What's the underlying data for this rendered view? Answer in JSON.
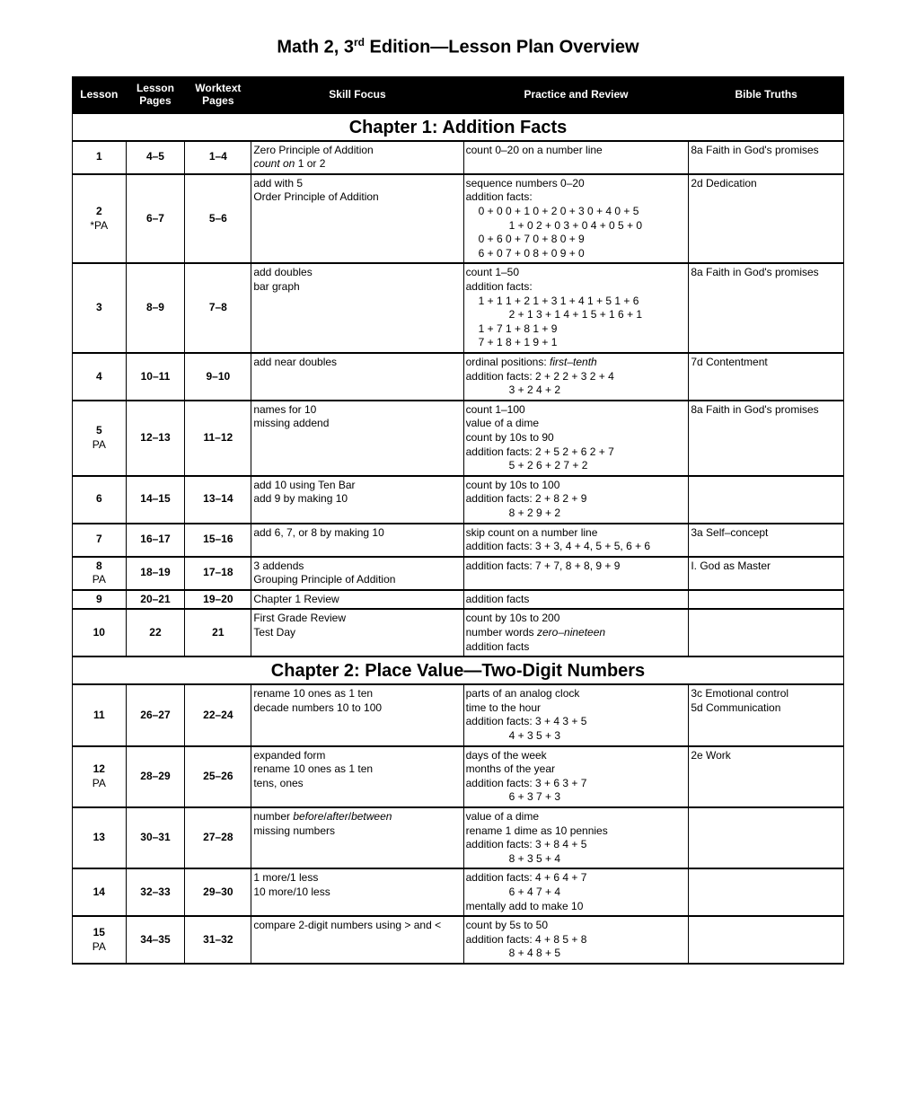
{
  "title_html": "Math 2, 3<sup>rd</sup> Edition—Lesson Plan Overview",
  "headers": [
    "Lesson",
    "Lesson Pages",
    "Worktext Pages",
    "Skill Focus",
    "Practice and Review",
    "Bible Truths"
  ],
  "sections": [
    {
      "chapter": "Chapter 1: Addition Facts",
      "rows": [
        {
          "lesson": "1",
          "sub": "",
          "lpages": "4–5",
          "wpages": "1–4",
          "skill": [
            {
              "t": "Zero Principle of Addition"
            },
            {
              "t": "count on 1 or 2",
              "it": true,
              "itPart": "count on",
              "rest": " 1 or 2"
            }
          ],
          "practice": [
            {
              "t": "count 0–20 on a number line"
            }
          ],
          "bible": [
            {
              "t": "8a Faith in God's promises"
            }
          ]
        },
        {
          "lesson": "2",
          "sub": "*PA",
          "lpages": "6–7",
          "wpages": "5–6",
          "skill": [
            {
              "t": "add with 5"
            },
            {
              "t": "Order Principle of Addition"
            }
          ],
          "practice": [
            {
              "t": "sequence numbers 0–20"
            },
            {
              "t": "addition facts:"
            },
            {
              "t": "0 + 0  0 + 1  0 + 2  0 + 3  0 + 4  0 + 5",
              "indent": 1
            },
            {
              "t": "1 + 0  2 + 0  3 + 0  4 + 0  5 + 0",
              "indent": 2
            },
            {
              "t": "0 + 6  0 + 7  0 + 8  0 + 9",
              "indent": 1
            },
            {
              "t": "6 + 0  7 + 0  8 + 0  9 + 0",
              "indent": 1
            }
          ],
          "bible": [
            {
              "t": "2d Dedication"
            }
          ]
        },
        {
          "lesson": "3",
          "sub": "",
          "lpages": "8–9",
          "wpages": "7–8",
          "skill": [
            {
              "t": "add doubles"
            },
            {
              "t": "bar graph"
            }
          ],
          "practice": [
            {
              "t": "count 1–50"
            },
            {
              "t": "addition facts:"
            },
            {
              "t": "1 + 1  1 + 2  1 + 3  1 + 4  1 + 5  1 + 6",
              "indent": 1
            },
            {
              "t": "2 + 1  3 + 1  4 + 1  5 + 1  6 + 1",
              "indent": 2
            },
            {
              "t": "1 + 7  1 + 8  1 + 9",
              "indent": 1
            },
            {
              "t": "7 + 1  8 + 1  9 + 1",
              "indent": 1
            }
          ],
          "bible": [
            {
              "t": "8a Faith in God's promises"
            }
          ]
        },
        {
          "lesson": "4",
          "sub": "",
          "lpages": "10–11",
          "wpages": "9–10",
          "skill": [
            {
              "t": "add near doubles"
            }
          ],
          "practice": [
            {
              "html": "ordinal positions: <span class='it'>first–tenth</span>"
            },
            {
              "t": "addition facts: 2 + 2   2 + 3   2 + 4"
            },
            {
              "t": "3 + 2   4 + 2",
              "indent": 2
            }
          ],
          "bible": [
            {
              "t": "7d Contentment"
            }
          ]
        },
        {
          "lesson": "5",
          "sub": "PA",
          "lpages": "12–13",
          "wpages": "11–12",
          "skill": [
            {
              "t": "names for 10"
            },
            {
              "t": "missing addend"
            }
          ],
          "practice": [
            {
              "t": "count 1–100"
            },
            {
              "t": "value of a dime"
            },
            {
              "t": "count by 10s to 90"
            },
            {
              "t": "addition facts: 2 + 5   2 + 6   2 + 7"
            },
            {
              "t": "5 + 2   6 + 2   7 + 2",
              "indent": 2
            }
          ],
          "bible": [
            {
              "t": "8a Faith in God's promises"
            }
          ]
        },
        {
          "lesson": "6",
          "sub": "",
          "lpages": "14–15",
          "wpages": "13–14",
          "skill": [
            {
              "t": "add 10 using Ten Bar"
            },
            {
              "t": "add 9 by making 10"
            }
          ],
          "practice": [
            {
              "t": "count by 10s to 100"
            },
            {
              "t": "addition facts: 2 + 8   2 + 9"
            },
            {
              "t": "8 + 2   9 + 2",
              "indent": 2
            }
          ],
          "bible": []
        },
        {
          "lesson": "7",
          "sub": "",
          "lpages": "16–17",
          "wpages": "15–16",
          "skill": [
            {
              "t": "add 6, 7, or 8 by making 10"
            }
          ],
          "practice": [
            {
              "t": "skip count on a number line"
            },
            {
              "t": "addition facts: 3 + 3,  4 + 4,  5 + 5,  6 + 6"
            }
          ],
          "bible": [
            {
              "t": "3a Self–concept"
            }
          ]
        },
        {
          "lesson": "8",
          "sub": "PA",
          "lpages": "18–19",
          "wpages": "17–18",
          "skill": [
            {
              "t": "3 addends"
            },
            {
              "t": "Grouping Principle of Addition"
            }
          ],
          "practice": [
            {
              "t": "addition facts: 7 + 7,  8 + 8,  9 + 9"
            }
          ],
          "bible": [
            {
              "t": "I. God as Master"
            }
          ]
        },
        {
          "lesson": "9",
          "sub": "",
          "lpages": "20–21",
          "wpages": "19–20",
          "skill": [
            {
              "t": "Chapter 1 Review"
            }
          ],
          "practice": [
            {
              "t": "addition facts"
            }
          ],
          "bible": []
        },
        {
          "lesson": "10",
          "sub": "",
          "lpages": "22",
          "wpages": "21",
          "skill": [
            {
              "t": "First Grade Review"
            },
            {
              "t": "Test Day"
            }
          ],
          "practice": [
            {
              "t": "count by 10s to 200"
            },
            {
              "html": "number words <span class='it'>zero–nineteen</span>"
            },
            {
              "t": "addition facts"
            }
          ],
          "bible": []
        }
      ]
    },
    {
      "chapter": "Chapter 2: Place Value—Two-Digit Numbers",
      "rows": [
        {
          "lesson": "11",
          "sub": "",
          "lpages": "26–27",
          "wpages": "22–24",
          "skill": [
            {
              "t": "rename 10 ones as 1 ten"
            },
            {
              "t": "decade numbers 10 to 100"
            }
          ],
          "practice": [
            {
              "t": "parts of an analog clock"
            },
            {
              "t": "time to the hour"
            },
            {
              "t": "addition facts: 3 + 4   3 + 5"
            },
            {
              "t": "4 + 3   5 + 3",
              "indent": 2
            }
          ],
          "bible": [
            {
              "t": "3c Emotional control"
            },
            {
              "t": "5d Communication"
            }
          ]
        },
        {
          "lesson": "12",
          "sub": "PA",
          "lpages": "28–29",
          "wpages": "25–26",
          "skill": [
            {
              "t": "expanded form"
            },
            {
              "t": "rename 10 ones as 1 ten"
            },
            {
              "t": "tens, ones"
            }
          ],
          "practice": [
            {
              "t": "days of the week"
            },
            {
              "t": "months of the year"
            },
            {
              "t": "addition facts: 3 + 6   3 + 7"
            },
            {
              "t": "6 + 3   7 + 3",
              "indent": 2
            }
          ],
          "bible": [
            {
              "t": "2e Work"
            }
          ]
        },
        {
          "lesson": "13",
          "sub": "",
          "lpages": "30–31",
          "wpages": "27–28",
          "skill": [
            {
              "html": "number <span class='it'>before</span>/<span class='it'>after</span>/<span class='it'>between</span>"
            },
            {
              "t": "missing numbers"
            }
          ],
          "practice": [
            {
              "t": "value of a dime"
            },
            {
              "t": "rename 1 dime as 10 pennies"
            },
            {
              "t": "addition facts: 3 + 8   4 + 5"
            },
            {
              "t": "8 + 3   5 + 4",
              "indent": 2
            }
          ],
          "bible": []
        },
        {
          "lesson": "14",
          "sub": "",
          "lpages": "32–33",
          "wpages": "29–30",
          "skill": [
            {
              "t": "1 more/1 less"
            },
            {
              "t": "10 more/10 less"
            }
          ],
          "practice": [
            {
              "t": "addition facts: 4 + 6   4 + 7"
            },
            {
              "t": "6 + 4   7 + 4",
              "indent": 2
            },
            {
              "t": "mentally add to make 10"
            }
          ],
          "bible": []
        },
        {
          "lesson": "15",
          "sub": "PA",
          "lpages": "34–35",
          "wpages": "31–32",
          "skill": [
            {
              "t": "compare 2-digit numbers using > and <"
            }
          ],
          "practice": [
            {
              "t": "count by 5s to 50"
            },
            {
              "t": "addition facts: 4 + 8   5 + 8"
            },
            {
              "t": "8 + 4   8 + 5",
              "indent": 2
            }
          ],
          "bible": []
        }
      ]
    }
  ]
}
